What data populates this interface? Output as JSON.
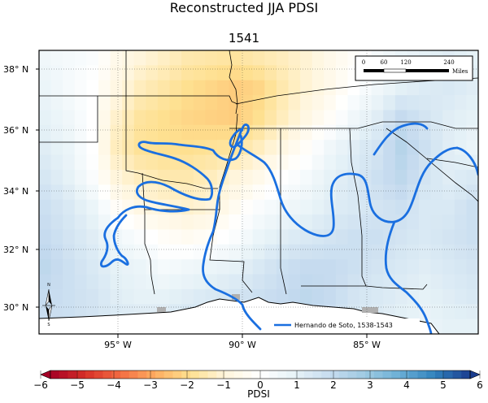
{
  "title": "Reconstructed JJA PDSI",
  "year": "1541",
  "lat_labels": [
    "38° N",
    "36° N",
    "34° N",
    "32° N",
    "30° N"
  ],
  "lon_labels": [
    "95° W",
    "90° W",
    "85° W"
  ],
  "scale_bar": {
    "ticks": [
      "0",
      "60",
      "120",
      "240"
    ],
    "unit": "Miles"
  },
  "route_legend": {
    "label": "Hernando de Soto, 1538-1543",
    "color": "#1a6fe0"
  },
  "north_arrow": {
    "top": "N",
    "bottom": "S"
  },
  "colorbar": {
    "label": "PDSI",
    "ticks": [
      "−6",
      "−5",
      "−4",
      "−3",
      "−2",
      "−1",
      "0",
      "1",
      "2",
      "3",
      "4",
      "5",
      "6"
    ],
    "min": -6,
    "max": 6,
    "colors": [
      "#a50026",
      "#d73027",
      "#f46d43",
      "#fdae61",
      "#fee090",
      "#fff5dc",
      "#ffffff",
      "#e6f2f7",
      "#c6dbef",
      "#9ecae1",
      "#6baed6",
      "#3182bd",
      "#1a3d8f"
    ]
  },
  "chart_data": {
    "type": "heatmap",
    "title": "Reconstructed JJA PDSI",
    "subtitle": "1541",
    "xlabel": "",
    "ylabel": "",
    "colorbar_label": "PDSI",
    "value_range": [
      -6,
      6
    ],
    "lon_range": [
      -98,
      -80
    ],
    "lat_range": [
      29,
      38.5
    ],
    "lon_ticks": [
      -95,
      -90,
      -85
    ],
    "lat_ticks": [
      30,
      32,
      34,
      36,
      38
    ],
    "grid": [
      [
        0.6,
        0.4,
        0.2,
        -0.6,
        -1.0,
        -1.3,
        -1.6,
        -1.7,
        -1.8,
        -1.6,
        -1.4,
        -1.1,
        -0.6,
        -0.2,
        0.4,
        0.8,
        1.0,
        1.2,
        1.0
      ],
      [
        0.8,
        0.4,
        0.0,
        -0.8,
        -1.4,
        -1.7,
        -2.0,
        -2.2,
        -2.4,
        -2.2,
        -1.6,
        -1.1,
        -0.6,
        0.0,
        0.6,
        1.1,
        1.3,
        1.4,
        1.2
      ],
      [
        1.0,
        0.6,
        0.0,
        -1.2,
        -1.8,
        -2.0,
        -2.2,
        -2.3,
        -2.4,
        -2.0,
        -1.4,
        -0.8,
        -0.2,
        0.6,
        1.2,
        2.0,
        1.6,
        1.2,
        1.0
      ],
      [
        1.2,
        0.8,
        0.0,
        -1.4,
        -1.9,
        -2.0,
        -2.0,
        -1.9,
        -1.8,
        -1.4,
        -0.8,
        -0.2,
        0.6,
        1.2,
        1.6,
        2.4,
        1.8,
        1.2,
        0.8
      ],
      [
        1.5,
        1.0,
        0.2,
        -1.0,
        -1.4,
        -1.6,
        -1.6,
        -1.4,
        -1.0,
        -0.6,
        0.0,
        0.4,
        1.0,
        1.4,
        1.8,
        2.2,
        1.6,
        1.2,
        1.4
      ],
      [
        1.8,
        1.4,
        0.8,
        -0.2,
        -0.8,
        -1.0,
        -1.2,
        -1.0,
        -0.4,
        0.2,
        0.6,
        0.8,
        1.2,
        1.4,
        1.6,
        1.8,
        1.4,
        1.4,
        1.8
      ],
      [
        2.0,
        1.6,
        1.2,
        0.6,
        0.2,
        -0.2,
        -0.4,
        -0.2,
        0.2,
        0.8,
        1.2,
        1.4,
        1.6,
        1.8,
        1.8,
        1.6,
        1.4,
        1.6,
        1.8
      ],
      [
        2.2,
        1.8,
        1.4,
        1.0,
        0.8,
        0.4,
        0.6,
        0.8,
        1.0,
        1.4,
        1.8,
        2.0,
        2.0,
        1.8,
        1.6,
        1.4,
        1.2,
        1.4,
        1.6
      ],
      [
        2.0,
        1.8,
        1.6,
        1.2,
        1.0,
        1.0,
        1.2,
        1.4,
        1.6,
        1.8,
        2.0,
        2.2,
        2.0,
        1.6,
        1.4,
        1.2,
        1.0,
        1.2,
        1.4
      ],
      [
        1.8,
        1.8,
        1.6,
        1.4,
        1.4,
        1.4,
        1.6,
        1.8,
        1.8,
        2.0,
        2.2,
        2.0,
        1.8,
        1.4,
        1.2,
        1.0,
        0.8,
        1.0,
        1.0
      ]
    ],
    "series": [
      {
        "name": "Hernando de Soto, 1538-1543"
      }
    ],
    "scale_bar_miles": [
      0,
      60,
      120,
      240
    ],
    "legend_position": "bottom-right"
  }
}
